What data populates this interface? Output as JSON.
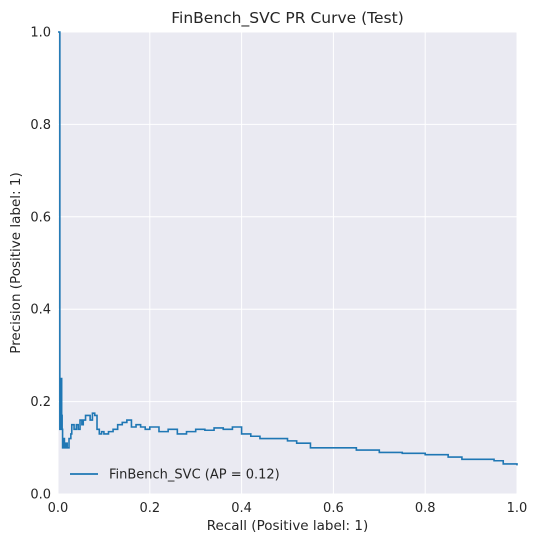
{
  "chart_data": {
    "type": "line",
    "title": "FinBench_SVC PR Curve (Test)",
    "xlabel": "Recall (Positive label: 1)",
    "ylabel": "Precision (Positive label: 1)",
    "xlim": [
      0.0,
      1.0
    ],
    "ylim": [
      0.0,
      1.0
    ],
    "xticks": [
      "0.0",
      "0.2",
      "0.4",
      "0.6",
      "0.8",
      "1.0"
    ],
    "yticks": [
      "0.0",
      "0.2",
      "0.4",
      "0.6",
      "0.8",
      "1.0"
    ],
    "grid": true,
    "legend_position": "lower-left",
    "style": {
      "plot_background": "#eaeaf2",
      "grid_color": "#ffffff",
      "series_color": "#1f77b4"
    },
    "series": [
      {
        "name": "FinBench_SVC (AP = 0.12)",
        "drawstyle": "steps",
        "x": [
          0.0,
          0.004,
          0.004,
          0.006,
          0.008,
          0.009,
          0.01,
          0.012,
          0.014,
          0.017,
          0.02,
          0.024,
          0.028,
          0.03,
          0.035,
          0.04,
          0.044,
          0.048,
          0.052,
          0.055,
          0.06,
          0.065,
          0.07,
          0.075,
          0.08,
          0.085,
          0.09,
          0.095,
          0.1,
          0.11,
          0.12,
          0.13,
          0.14,
          0.15,
          0.16,
          0.17,
          0.18,
          0.19,
          0.2,
          0.22,
          0.24,
          0.26,
          0.28,
          0.3,
          0.32,
          0.34,
          0.36,
          0.38,
          0.4,
          0.42,
          0.44,
          0.46,
          0.5,
          0.52,
          0.55,
          0.6,
          0.65,
          0.7,
          0.75,
          0.8,
          0.85,
          0.88,
          0.9,
          0.95,
          0.97,
          1.0
        ],
        "y": [
          1.0,
          1.0,
          0.14,
          0.25,
          0.17,
          0.14,
          0.1,
          0.12,
          0.1,
          0.11,
          0.1,
          0.12,
          0.13,
          0.15,
          0.14,
          0.15,
          0.14,
          0.16,
          0.15,
          0.16,
          0.17,
          0.17,
          0.16,
          0.175,
          0.17,
          0.14,
          0.13,
          0.135,
          0.13,
          0.135,
          0.14,
          0.15,
          0.155,
          0.16,
          0.145,
          0.15,
          0.145,
          0.14,
          0.145,
          0.135,
          0.14,
          0.13,
          0.135,
          0.14,
          0.138,
          0.143,
          0.14,
          0.145,
          0.13,
          0.125,
          0.12,
          0.12,
          0.115,
          0.11,
          0.1,
          0.1,
          0.095,
          0.09,
          0.088,
          0.085,
          0.08,
          0.075,
          0.075,
          0.072,
          0.065,
          0.062
        ]
      }
    ]
  }
}
